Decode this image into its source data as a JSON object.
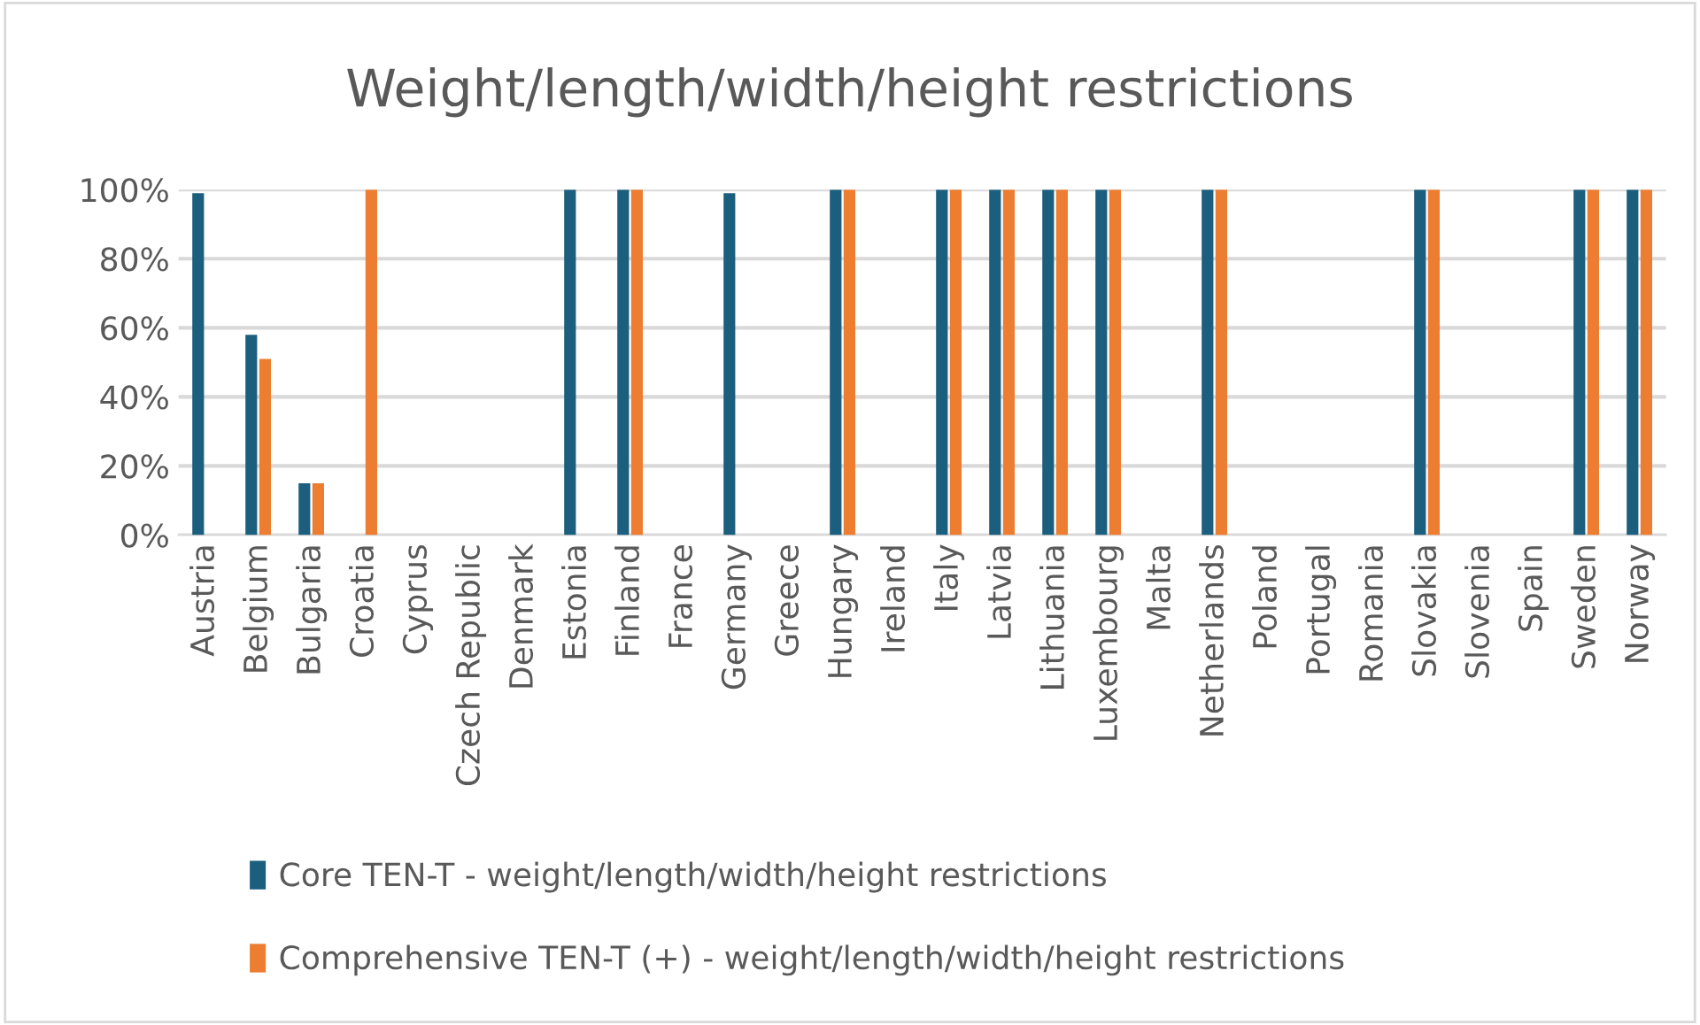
{
  "chart_data": {
    "type": "bar",
    "title": "Weight/length/width/height restrictions",
    "categories": [
      "Austria",
      "Belgium",
      "Bulgaria",
      "Croatia",
      "Cyprus",
      "Czech Republic",
      "Denmark",
      "Estonia",
      "Finland",
      "France",
      "Germany",
      "Greece",
      "Hungary",
      "Ireland",
      "Italy",
      "Latvia",
      "Lithuania",
      "Luxembourg",
      "Malta",
      "Netherlands",
      "Poland",
      "Portugal",
      "Romania",
      "Slovakia",
      "Slovenia",
      "Spain",
      "Sweden",
      "Norway"
    ],
    "series": [
      {
        "name": "Core TEN-T - weight/length/width/height restrictions",
        "color": "#1b5e7e",
        "values": [
          99,
          58,
          15,
          0,
          0,
          0,
          0,
          100,
          100,
          0,
          99,
          0,
          100,
          0,
          100,
          100,
          100,
          100,
          0,
          100,
          0,
          0,
          0,
          100,
          0,
          0,
          100,
          100
        ]
      },
      {
        "name": "Comprehensive TEN-T (+) - weight/length/width/height restrictions",
        "color": "#ed7d31",
        "values": [
          0,
          51,
          15,
          100,
          0,
          0,
          0,
          0,
          100,
          0,
          0,
          0,
          100,
          0,
          100,
          100,
          100,
          100,
          0,
          100,
          0,
          0,
          0,
          100,
          0,
          0,
          100,
          100
        ]
      }
    ],
    "ylim": [
      0,
      100
    ],
    "yticks": [
      {
        "value": 0,
        "label": "0%"
      },
      {
        "value": 20,
        "label": "20%"
      },
      {
        "value": 40,
        "label": "40%"
      },
      {
        "value": 60,
        "label": "60%"
      },
      {
        "value": 80,
        "label": "80%"
      },
      {
        "value": 100,
        "label": "100%"
      }
    ],
    "grid": "y",
    "legend": "bottom left"
  }
}
